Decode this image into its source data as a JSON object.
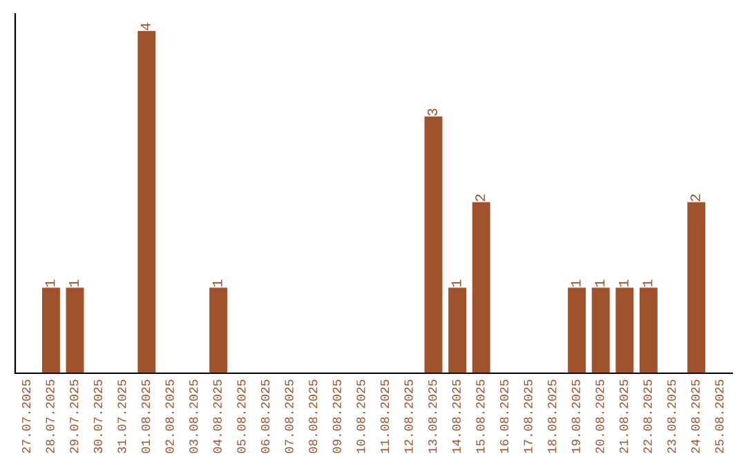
{
  "chart_data": {
    "type": "bar",
    "categories": [
      "27.07.2025",
      "28.07.2025",
      "29.07.2025",
      "30.07.2025",
      "31.07.2025",
      "01.08.2025",
      "02.08.2025",
      "03.08.2025",
      "04.08.2025",
      "05.08.2025",
      "06.08.2025",
      "07.08.2025",
      "08.08.2025",
      "09.08.2025",
      "10.08.2025",
      "11.08.2025",
      "12.08.2025",
      "13.08.2025",
      "14.08.2025",
      "15.08.2025",
      "16.08.2025",
      "17.08.2025",
      "18.08.2025",
      "19.08.2025",
      "20.08.2025",
      "21.08.2025",
      "22.08.2025",
      "23.08.2025",
      "24.08.2025",
      "25.08.2025"
    ],
    "values": [
      0,
      1,
      1,
      0,
      0,
      4,
      0,
      0,
      1,
      0,
      0,
      0,
      0,
      0,
      0,
      0,
      0,
      3,
      1,
      2,
      0,
      0,
      0,
      1,
      1,
      1,
      1,
      0,
      2,
      0
    ],
    "value_labels": [
      null,
      "1",
      "1",
      null,
      null,
      "4",
      null,
      null,
      "1",
      null,
      null,
      null,
      null,
      null,
      null,
      null,
      null,
      "3",
      "1",
      "2",
      null,
      null,
      null,
      "1",
      "1",
      "1",
      "1",
      null,
      "2",
      null
    ],
    "color": "#a0522d",
    "tick_labels": "x",
    "grid": false,
    "legend": false
  }
}
